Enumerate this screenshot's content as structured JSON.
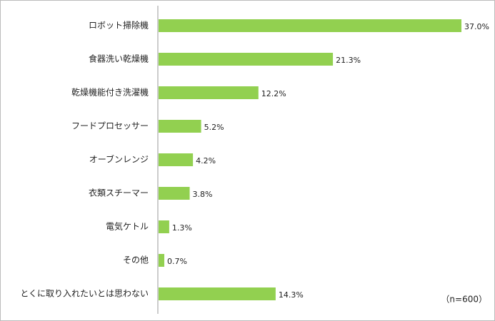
{
  "chart_data": {
    "type": "bar",
    "orientation": "horizontal",
    "categories": [
      "ロボット掃除機",
      "食器洗い乾燥機",
      "乾燥機能付き洗濯機",
      "フードプロセッサー",
      "オーブンレンジ",
      "衣類スチーマー",
      "電気ケトル",
      "その他",
      "とくに取り入れたいとは思わない"
    ],
    "values": [
      37.0,
      21.3,
      12.2,
      5.2,
      4.2,
      3.8,
      1.3,
      0.7,
      14.3
    ],
    "value_labels": [
      "37.0%",
      "21.3%",
      "12.2%",
      "5.2%",
      "4.2%",
      "3.8%",
      "1.3%",
      "0.7%",
      "14.3%"
    ],
    "color": "#92d050",
    "annotation": "（n=600）"
  }
}
